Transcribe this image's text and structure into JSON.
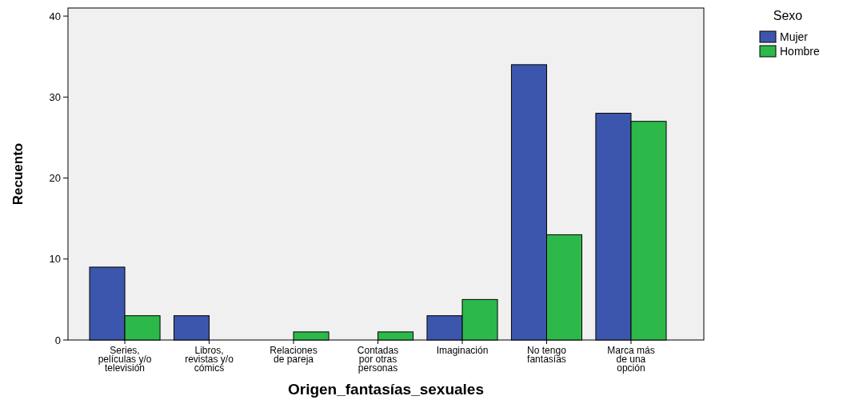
{
  "chart_data": {
    "type": "bar",
    "xlabel": "Origen_fantasías_sexuales",
    "ylabel": "Recuento",
    "legend_title": "Sexo",
    "legend": "top right",
    "grid": false,
    "categories": [
      "Series,\npelículas y/o\ntelevisión",
      "Libros,\nrevistas y/o\ncómics",
      "Relaciones\nde pareja",
      "Contadas\npor otras\npersonas",
      "Imaginación",
      "No tengo\nfantasías",
      "Marca más\nde una\nopción"
    ],
    "series": [
      {
        "name": "Mujer",
        "color": "#3d56ad",
        "values": [
          9,
          3,
          null,
          null,
          3,
          34,
          28
        ]
      },
      {
        "name": "Hombre",
        "color": "#2db84a",
        "values": [
          3,
          null,
          1,
          1,
          5,
          13,
          27
        ]
      }
    ],
    "ylim": [
      0,
      41
    ],
    "yticks": [
      0,
      10,
      20,
      30,
      40
    ]
  }
}
